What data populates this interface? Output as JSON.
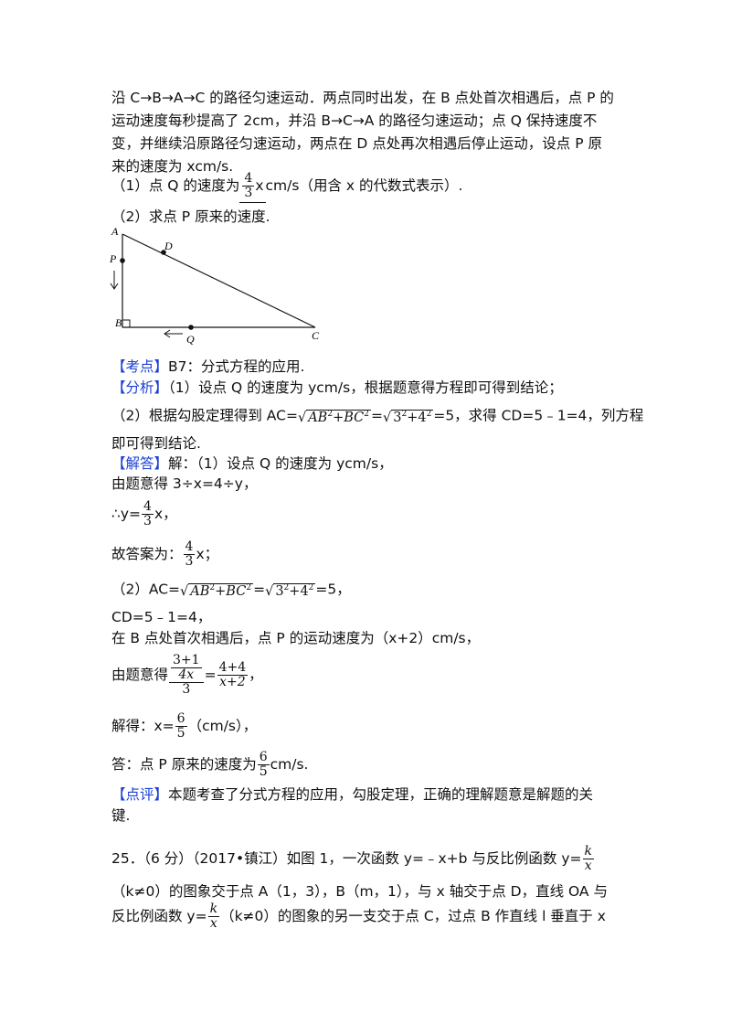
{
  "intro": {
    "l1": "沿 C→B→A→C 的路径匀速运动．两点同时出发，在 B 点处首次相遇后，点 P 的",
    "l2": "运动速度每秒提高了 2cm，并沿 B→C→A 的路径匀速运动；点 Q 保持速度不",
    "l3": "变，并继续沿原路径匀速运动，两点在 D 点处再次相遇后停止运动，设点 P 原",
    "l4": "来的速度为 xcm/s."
  },
  "q1": {
    "pre": "（1）点 Q 的速度为",
    "num": "4",
    "den": "3",
    "var": "x",
    "post": "cm/s（用含 x 的代数式表示）."
  },
  "q2": "（2）求点 P 原来的速度.",
  "figure": {
    "A": "A",
    "B": "B",
    "C": "C",
    "D": "D",
    "P": "P",
    "Q": "Q"
  },
  "kaodian": {
    "tag": "【考点】",
    "text": "B7：分式方程的应用."
  },
  "fenxi": {
    "tag": "【分析】",
    "l1": "（1）设点 Q 的速度为 ycm/s，根据题意得方程即可得到结论；",
    "l2_pre": "（2）根据勾股定理得到 AC=",
    "l2_mid": "=",
    "l2_post": "=5，求得 CD=5﹣1=4，列方程",
    "l3": "即可得到结论."
  },
  "math": {
    "ab": "AB",
    "bc": "BC",
    "sq": "2",
    "three": "3",
    "four": "4",
    "plus": "+"
  },
  "jieda": {
    "tag": "【解答】",
    "l1": "解：（1）设点 Q 的速度为 ycm/s，",
    "l2": "由题意得 3÷x=4÷y，",
    "l3_pre": "∴y=",
    "l3_post": "x，",
    "l4_pre": "故答案为：",
    "l4_post": "x；",
    "l5_pre": "（2）AC=",
    "l5_mid": "=",
    "l5_post": "=5，",
    "l6": "CD=5﹣1=4，",
    "l7": "在 B 点处首次相遇后，点 P 的运动速度为（x+2）cm/s，",
    "l8_pre": "由题意得",
    "eq_num_top": "3+1",
    "eq_num_bot": "4x",
    "eq_den": "3",
    "eq_eq": "=",
    "eq_r_num": "4+4",
    "eq_r_den": "x+2",
    "eq_post": "，",
    "l9_pre": "解得：x=",
    "l9_num": "6",
    "l9_den": "5",
    "l9_post": "（cm/s），",
    "l10_pre": "答：点 P 原来的速度为",
    "l10_post": "cm/s."
  },
  "dianping": {
    "tag": "【点评】",
    "l1": "本题考查了分式方程的应用，勾股定理，正确的理解题意是解题的关",
    "l2": "键."
  },
  "q25": {
    "l1_pre": "25．（6 分）（2017•镇江）如图 1，一次函数 y=﹣x+b 与反比例函数 y=",
    "k": "k",
    "x": "x",
    "l2": "（k≠0）的图象交于点 A（1，3），B（m，1），与 x 轴交于点 D，直线 OA 与",
    "l3_pre": "反比例函数 y=",
    "l3_post": "（k≠0）的图象的另一支交于点 C，过点 B 作直线 l 垂直于 x"
  }
}
